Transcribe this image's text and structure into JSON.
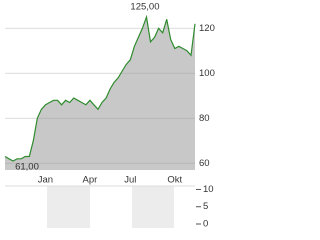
{
  "chart_data": {
    "type": "area",
    "categories": [
      null,
      null,
      null,
      null,
      null,
      null,
      null,
      null,
      null,
      null,
      "Jan",
      null,
      null,
      null,
      null,
      null,
      null,
      null,
      null,
      null,
      null,
      "Apr",
      null,
      null,
      null,
      null,
      null,
      null,
      null,
      null,
      null,
      "Jul",
      null,
      null,
      null,
      null,
      null,
      null,
      null,
      null,
      null,
      null,
      "Okt",
      null,
      null,
      null,
      null,
      null
    ],
    "values": [
      63,
      62,
      61,
      62,
      62,
      63,
      63,
      70,
      80,
      84,
      86,
      87,
      88,
      88,
      86,
      88,
      87,
      89,
      88,
      87,
      86,
      88,
      86,
      84,
      87,
      89,
      93,
      96,
      98,
      101,
      104,
      106,
      112,
      116,
      120,
      125,
      114,
      116,
      120,
      118,
      124,
      115,
      111,
      112,
      111,
      110,
      108,
      122
    ],
    "color": "#2e8b2e",
    "fill": "#c8c8c8",
    "ylim": [
      57,
      129
    ],
    "yticks": [
      60,
      80,
      100,
      120
    ],
    "grid": true,
    "annotations": [
      {
        "value": 125,
        "label": "125,00"
      },
      {
        "value": 61,
        "label": "61,00"
      }
    ],
    "volume_ylim": [
      0,
      11
    ],
    "volume_yticks": [
      0,
      5,
      10
    ]
  }
}
